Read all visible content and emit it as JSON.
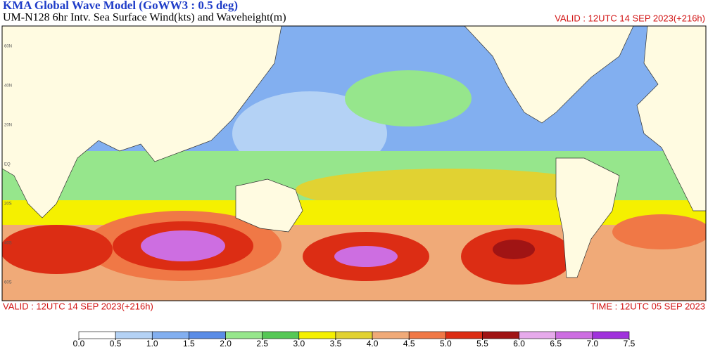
{
  "header": {
    "title": "KMA  Global Wave Model (GoWW3 : 0.5 deg)",
    "subtitle": "UM-N128  6hr Intv. Sea Surface Wind(kts) and Waveheight(m)",
    "valid": "VALID : 12UTC 14 SEP 2023(+216h)"
  },
  "footer": {
    "valid": "VALID : 12UTC 14 SEP 2023(+216h)",
    "time": "TIME : 12UTC 05 SEP 2023"
  },
  "map": {
    "lat_labels": [
      "60N",
      "40N",
      "20N",
      "EQ",
      "20S",
      "40S",
      "60S"
    ]
  },
  "legend": {
    "ticks": [
      {
        "value": 0,
        "label": "0.0"
      },
      0.5,
      {
        "value": 1,
        "label": "1.0"
      },
      1.5,
      {
        "value": 2,
        "label": "2.0"
      },
      2.5,
      {
        "value": 3,
        "label": "3.0"
      },
      3.5,
      {
        "value": 4,
        "label": "4.0"
      },
      4.5,
      {
        "value": 5,
        "label": "5.0"
      },
      5.5,
      {
        "value": 6,
        "label": "6.0"
      },
      6.5,
      {
        "value": 7,
        "label": "7.0"
      },
      7.5
    ],
    "colors": [
      "#ffffff",
      "#b4d2f5",
      "#82aff0",
      "#5a8ce6",
      "#96e68c",
      "#55c855",
      "#f5f000",
      "#e1d232",
      "#f0aa78",
      "#f07846",
      "#dc2d14",
      "#a01414",
      "#e6aaeb",
      "#cd6ee1",
      "#a032dc"
    ]
  }
}
